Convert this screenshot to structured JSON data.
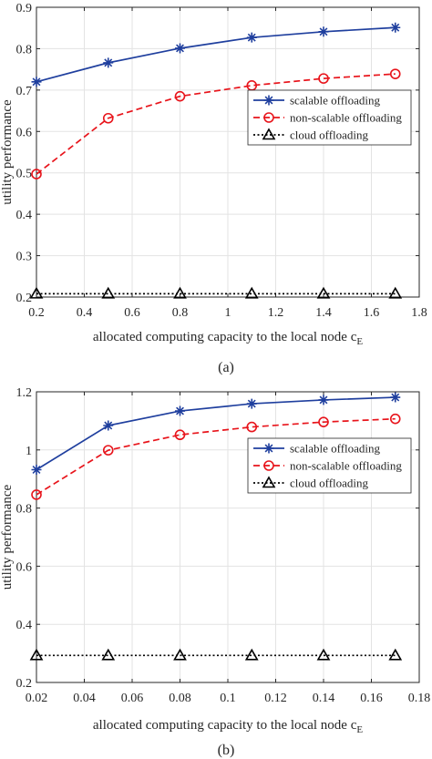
{
  "chart_data": [
    {
      "type": "line",
      "caption": "(a)",
      "xlabel": "allocated computing capacity to the local node c",
      "xlabel_subscript": "E",
      "ylabel": "utility performance",
      "xlim": [
        0.2,
        1.8
      ],
      "ylim": [
        0.2,
        0.9
      ],
      "xticks": [
        0.2,
        0.4,
        0.6,
        0.8,
        1.0,
        1.2,
        1.4,
        1.6,
        1.8
      ],
      "xtick_labels": [
        "0.2",
        "0.4",
        "0.6",
        "0.8",
        "1",
        "1.2",
        "1.4",
        "1.6",
        "1.8"
      ],
      "yticks": [
        0.2,
        0.3,
        0.4,
        0.5,
        0.6,
        0.7,
        0.8,
        0.9
      ],
      "ytick_labels": [
        "0.2",
        "0.3",
        "0.4",
        "0.5",
        "0.6",
        "0.7",
        "0.8",
        "0.9"
      ],
      "grid": true,
      "legend_position": "right",
      "x": [
        0.2,
        0.5,
        0.8,
        1.1,
        1.4,
        1.7
      ],
      "series": [
        {
          "name": "scalable offloading",
          "values": [
            0.72,
            0.766,
            0.801,
            0.827,
            0.841,
            0.851
          ],
          "color": "#1f3f9e",
          "marker": "star",
          "line": "solid"
        },
        {
          "name": "non-scalable offloading",
          "values": [
            0.497,
            0.632,
            0.685,
            0.711,
            0.728,
            0.739
          ],
          "color": "#e8141b",
          "marker": "circle",
          "line": "dashed"
        },
        {
          "name": "cloud offloading",
          "values": [
            0.208,
            0.208,
            0.208,
            0.208,
            0.208,
            0.208
          ],
          "color": "#000000",
          "marker": "triangle",
          "line": "dotted"
        }
      ]
    },
    {
      "type": "line",
      "caption": "(b)",
      "xlabel": "allocated computing capacity to the local node c",
      "xlabel_subscript": "E",
      "ylabel": "utility performance",
      "xlim": [
        0.02,
        0.18
      ],
      "ylim": [
        0.2,
        1.2
      ],
      "xticks": [
        0.02,
        0.04,
        0.06,
        0.08,
        0.1,
        0.12,
        0.14,
        0.16,
        0.18
      ],
      "xtick_labels": [
        "0.02",
        "0.04",
        "0.06",
        "0.08",
        "0.1",
        "0.12",
        "0.14",
        "0.16",
        "0.18"
      ],
      "yticks": [
        0.2,
        0.4,
        0.6,
        0.8,
        1.0,
        1.2
      ],
      "ytick_labels": [
        "0.2",
        "0.4",
        "0.6",
        "0.8",
        "1",
        "1.2"
      ],
      "grid": true,
      "legend_position": "right",
      "x": [
        0.02,
        0.05,
        0.08,
        0.11,
        0.14,
        0.17
      ],
      "series": [
        {
          "name": "scalable offloading",
          "values": [
            0.932,
            1.084,
            1.134,
            1.159,
            1.172,
            1.181
          ],
          "color": "#1f3f9e",
          "marker": "star",
          "line": "solid"
        },
        {
          "name": "non-scalable offloading",
          "values": [
            0.846,
            0.999,
            1.052,
            1.079,
            1.096,
            1.107
          ],
          "color": "#e8141b",
          "marker": "circle",
          "line": "dashed"
        },
        {
          "name": "cloud offloading",
          "values": [
            0.293,
            0.293,
            0.293,
            0.293,
            0.293,
            0.293
          ],
          "color": "#000000",
          "marker": "triangle",
          "line": "dotted"
        }
      ]
    }
  ]
}
